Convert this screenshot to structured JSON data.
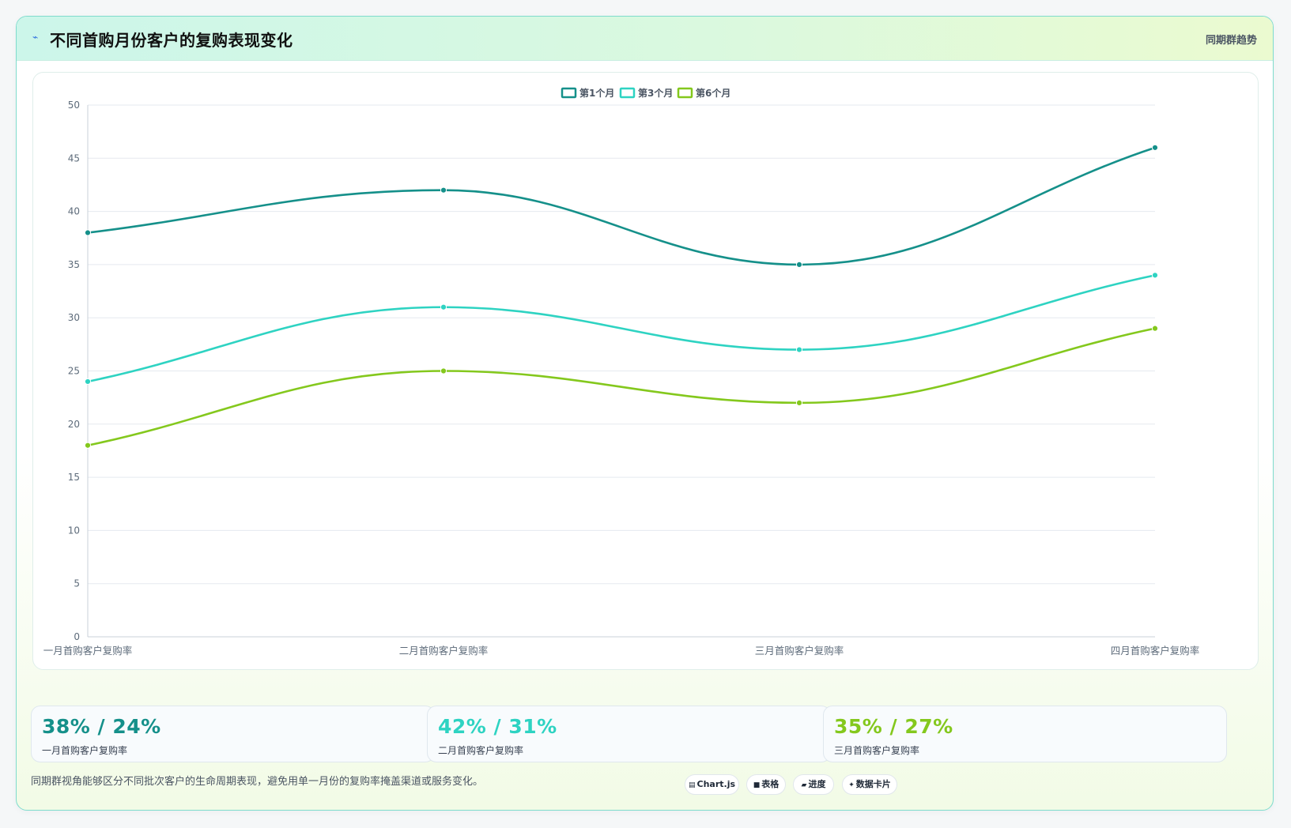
{
  "header": {
    "icon": "trend-icon",
    "title": "不同首购月份客户的复购表现变化",
    "tag": "同期群趋势"
  },
  "colors": {
    "series1": "#15908a",
    "series2": "#2ed3c2",
    "series3": "#84c81d",
    "grid": "#e5e9ef",
    "tick": "#5d6b7a"
  },
  "chart_data": {
    "type": "line",
    "categories": [
      "一月首购客户复购率",
      "二月首购客户复购率",
      "三月首购客户复购率",
      "四月首购客户复购率"
    ],
    "series": [
      {
        "name": "第1个月",
        "values": [
          38,
          42,
          35,
          46
        ],
        "color": "#15908a"
      },
      {
        "name": "第3个月",
        "values": [
          24,
          31,
          27,
          34
        ],
        "color": "#2ed3c2"
      },
      {
        "name": "第6个月",
        "values": [
          18,
          25,
          22,
          29
        ],
        "color": "#84c81d"
      }
    ],
    "ylim": [
      0,
      50
    ],
    "yticks": [
      "0",
      "5",
      "10",
      "15",
      "20",
      "25",
      "30",
      "35",
      "40",
      "45",
      "50"
    ],
    "grid": true,
    "legend": "top-center",
    "curve": "smooth"
  },
  "stats": [
    {
      "value": "38% / 24%",
      "label": "一月首购客户复购率",
      "color": "#15908a"
    },
    {
      "value": "42% / 31%",
      "label": "二月首购客户复购率",
      "color": "#2ed3c2"
    },
    {
      "value": "35% / 27%",
      "label": "三月首购客户复购率",
      "color": "#84c81d"
    }
  ],
  "footer": {
    "note": "同期群视角能够区分不同批次客户的生命周期表现，避免用单一月份的复购率掩盖渠道或服务变化。",
    "chips": [
      {
        "icon": "chart-icon",
        "label": "Chart.js"
      },
      {
        "icon": "table-icon",
        "label": "表格"
      },
      {
        "icon": "progress-icon",
        "label": "进度"
      },
      {
        "icon": "sparkle-icon",
        "label": "数据卡片"
      }
    ]
  }
}
